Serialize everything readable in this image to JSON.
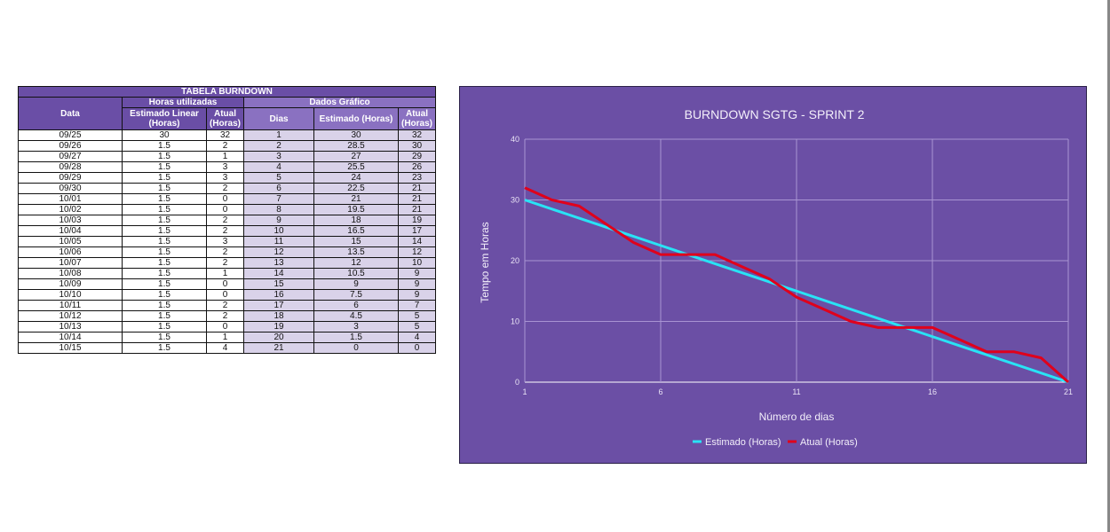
{
  "table": {
    "title": "TABELA BURNDOWN",
    "group_horas": "Horas utilizadas",
    "group_dados": "Dados Gráfico",
    "col_data": "Data",
    "col_estimado_linear": "Estimado Linear (Horas)",
    "col_atual": "Atual (Horas)",
    "col_dias": "Dias",
    "col_estimado": "Estimado (Horas)",
    "col_atual2": "Atual (Horas)",
    "rows": [
      [
        "09/25",
        "30",
        "32",
        "1",
        "30",
        "32"
      ],
      [
        "09/26",
        "1.5",
        "2",
        "2",
        "28.5",
        "30"
      ],
      [
        "09/27",
        "1.5",
        "1",
        "3",
        "27",
        "29"
      ],
      [
        "09/28",
        "1.5",
        "3",
        "4",
        "25.5",
        "26"
      ],
      [
        "09/29",
        "1.5",
        "3",
        "5",
        "24",
        "23"
      ],
      [
        "09/30",
        "1.5",
        "2",
        "6",
        "22.5",
        "21"
      ],
      [
        "10/01",
        "1.5",
        "0",
        "7",
        "21",
        "21"
      ],
      [
        "10/02",
        "1.5",
        "0",
        "8",
        "19.5",
        "21"
      ],
      [
        "10/03",
        "1.5",
        "2",
        "9",
        "18",
        "19"
      ],
      [
        "10/04",
        "1.5",
        "2",
        "10",
        "16.5",
        "17"
      ],
      [
        "10/05",
        "1.5",
        "3",
        "11",
        "15",
        "14"
      ],
      [
        "10/06",
        "1.5",
        "2",
        "12",
        "13.5",
        "12"
      ],
      [
        "10/07",
        "1.5",
        "2",
        "13",
        "12",
        "10"
      ],
      [
        "10/08",
        "1.5",
        "1",
        "14",
        "10.5",
        "9"
      ],
      [
        "10/09",
        "1.5",
        "0",
        "15",
        "9",
        "9"
      ],
      [
        "10/10",
        "1.5",
        "0",
        "16",
        "7.5",
        "9"
      ],
      [
        "10/11",
        "1.5",
        "2",
        "17",
        "6",
        "7"
      ],
      [
        "10/12",
        "1.5",
        "2",
        "18",
        "4.5",
        "5"
      ],
      [
        "10/13",
        "1.5",
        "0",
        "19",
        "3",
        "5"
      ],
      [
        "10/14",
        "1.5",
        "1",
        "20",
        "1.5",
        "4"
      ],
      [
        "10/15",
        "1.5",
        "4",
        "21",
        "0",
        "0"
      ]
    ]
  },
  "chart_data": {
    "type": "line",
    "title": "BURNDOWN SGTG - SPRINT 2",
    "xlabel": "Número de dias",
    "ylabel": "Tempo em Horas",
    "x": [
      1,
      2,
      3,
      4,
      5,
      6,
      7,
      8,
      9,
      10,
      11,
      12,
      13,
      14,
      15,
      16,
      17,
      18,
      19,
      20,
      21
    ],
    "xticks": [
      1,
      6,
      11,
      16,
      21
    ],
    "yticks": [
      0,
      10,
      20,
      30,
      40
    ],
    "xlim": [
      1,
      21
    ],
    "ylim": [
      0,
      40
    ],
    "grid": true,
    "legend_position": "bottom",
    "series": [
      {
        "name": "Estimado (Horas)",
        "color": "#29e3f5",
        "values": [
          30,
          28.5,
          27,
          25.5,
          24,
          22.5,
          21,
          19.5,
          18,
          16.5,
          15,
          13.5,
          12,
          10.5,
          9,
          7.5,
          6,
          4.5,
          3,
          1.5,
          0
        ]
      },
      {
        "name": "Atual (Horas)",
        "color": "#e0001b",
        "values": [
          32,
          30,
          29,
          26,
          23,
          21,
          21,
          21,
          19,
          17,
          14,
          12,
          10,
          9,
          9,
          9,
          7,
          5,
          5,
          4,
          0
        ]
      }
    ],
    "background": "#6b4fa5"
  }
}
